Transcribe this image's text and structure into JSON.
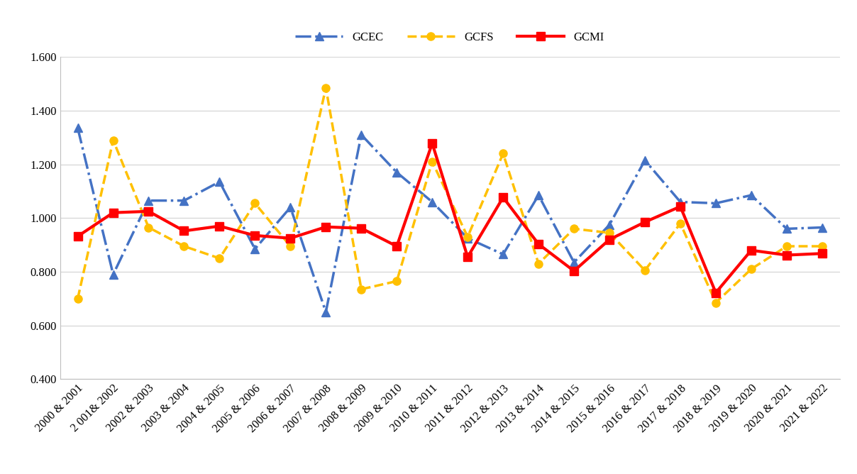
{
  "chart_data": {
    "type": "line",
    "categories": [
      "2000 & 2001",
      "2 001& 2002",
      "2002 & 2003",
      "2003 & 2004",
      "2004 & 2005",
      "2005 & 2006",
      "2006 & 2007",
      "2007 & 2008",
      "2008 & 2009",
      "2009 & 2010",
      "2010 & 2011",
      "2011 & 2012",
      "2012 & 2013",
      "2013 & 2014",
      "2014 & 2015",
      "2015 & 2016",
      "2016 & 2017",
      "2017 & 2018",
      "2018 & 2019",
      "2019 & 2020",
      "2020 & 2021",
      "2021 & 2022"
    ],
    "series": [
      {
        "name": "GCEC",
        "color": "#4472c4",
        "marker": "triangle",
        "line_style": "dashdot",
        "values": [
          1.335,
          0.79,
          1.065,
          1.065,
          1.135,
          0.885,
          1.04,
          0.65,
          1.31,
          1.17,
          1.06,
          0.925,
          0.865,
          1.085,
          0.835,
          0.975,
          1.215,
          1.06,
          1.055,
          1.085,
          0.96,
          0.965
        ]
      },
      {
        "name": "GCFS",
        "color": "#ffc000",
        "marker": "circle",
        "line_style": "dashed",
        "values": [
          0.7,
          1.29,
          0.965,
          0.895,
          0.85,
          1.055,
          0.895,
          1.485,
          0.735,
          0.765,
          1.21,
          0.93,
          1.24,
          0.83,
          0.96,
          0.945,
          0.805,
          0.98,
          0.685,
          0.81,
          0.895,
          0.895
        ]
      },
      {
        "name": "GCMI",
        "color": "#ff0000",
        "marker": "square",
        "line_style": "solid",
        "values": [
          0.932,
          1.02,
          1.025,
          0.952,
          0.97,
          0.935,
          0.925,
          0.967,
          0.962,
          0.895,
          1.278,
          0.855,
          1.077,
          0.903,
          0.803,
          0.92,
          0.985,
          1.043,
          0.722,
          0.88,
          0.862,
          0.868
        ]
      }
    ],
    "ylim": [
      0.4,
      1.6
    ],
    "yticks": [
      {
        "value": 0.4,
        "label": "0.400"
      },
      {
        "value": 0.6,
        "label": "0.600"
      },
      {
        "value": 0.8,
        "label": "0.800"
      },
      {
        "value": 1.0,
        "label": "1.000"
      },
      {
        "value": 1.2,
        "label": "1.200"
      },
      {
        "value": 1.4,
        "label": "1.400"
      },
      {
        "value": 1.6,
        "label": "1.600"
      }
    ],
    "grid": true,
    "legend": "upper center"
  }
}
